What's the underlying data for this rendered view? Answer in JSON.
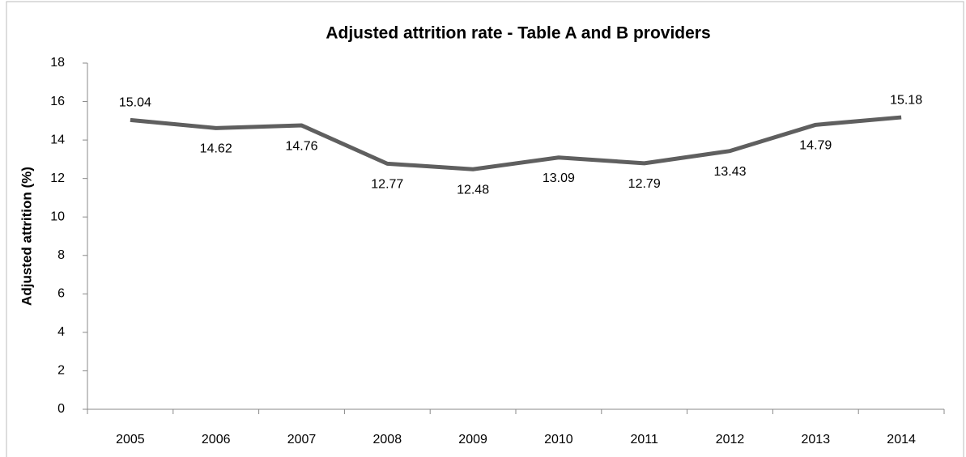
{
  "chart_data": {
    "type": "line",
    "title": "Adjusted attrition rate - Table A and B providers",
    "y_label": "Adjusted attrition (%)",
    "categories": [
      "2005",
      "2006",
      "2007",
      "2008",
      "2009",
      "2010",
      "2011",
      "2012",
      "2013",
      "2014"
    ],
    "values": [
      15.04,
      14.62,
      14.76,
      12.77,
      12.48,
      13.09,
      12.79,
      13.43,
      14.79,
      15.18
    ],
    "color": "#5f5f5f",
    "ylim": [
      0,
      18
    ],
    "yticks": [
      0,
      2,
      4,
      6,
      8,
      10,
      12,
      14,
      16,
      18
    ],
    "grid": false
  }
}
